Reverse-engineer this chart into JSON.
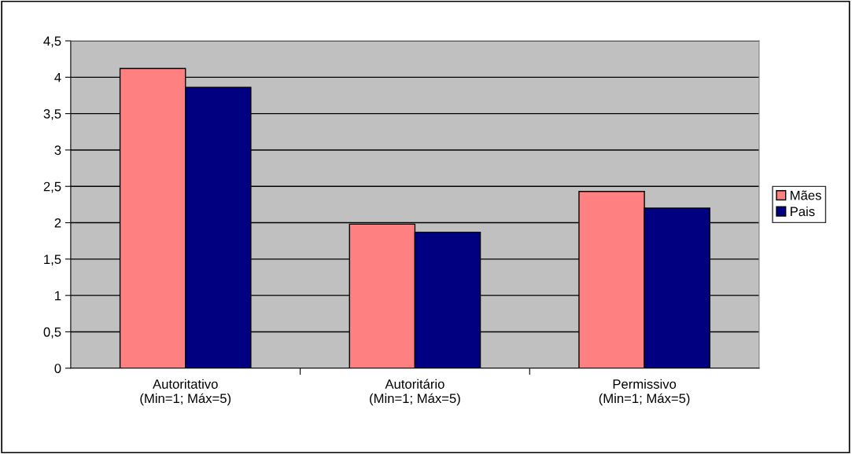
{
  "chart_data": {
    "type": "bar",
    "categories": [
      "Autoritativo\n(Min=1; Máx=5)",
      "Autoritário\n(Min=1; Máx=5)",
      "Permissivo\n(Min=1; Máx=5)"
    ],
    "series": [
      {
        "name": "Mães",
        "color": "#ff8080",
        "values": [
          4.12,
          1.98,
          2.43
        ]
      },
      {
        "name": "Pais",
        "color": "#000080",
        "values": [
          3.86,
          1.87,
          2.2
        ]
      }
    ],
    "ylim": [
      0,
      4.5
    ],
    "yticks": [
      0,
      {
        "value": 0.5,
        "label": "0,5"
      },
      1,
      {
        "value": 1.5,
        "label": "1,5"
      },
      2,
      {
        "value": 2.5,
        "label": "2,5"
      },
      3,
      {
        "value": 3.5,
        "label": "3,5"
      },
      4,
      {
        "value": 4.5,
        "label": "4,5"
      }
    ],
    "grid": "y",
    "legend": "right"
  }
}
